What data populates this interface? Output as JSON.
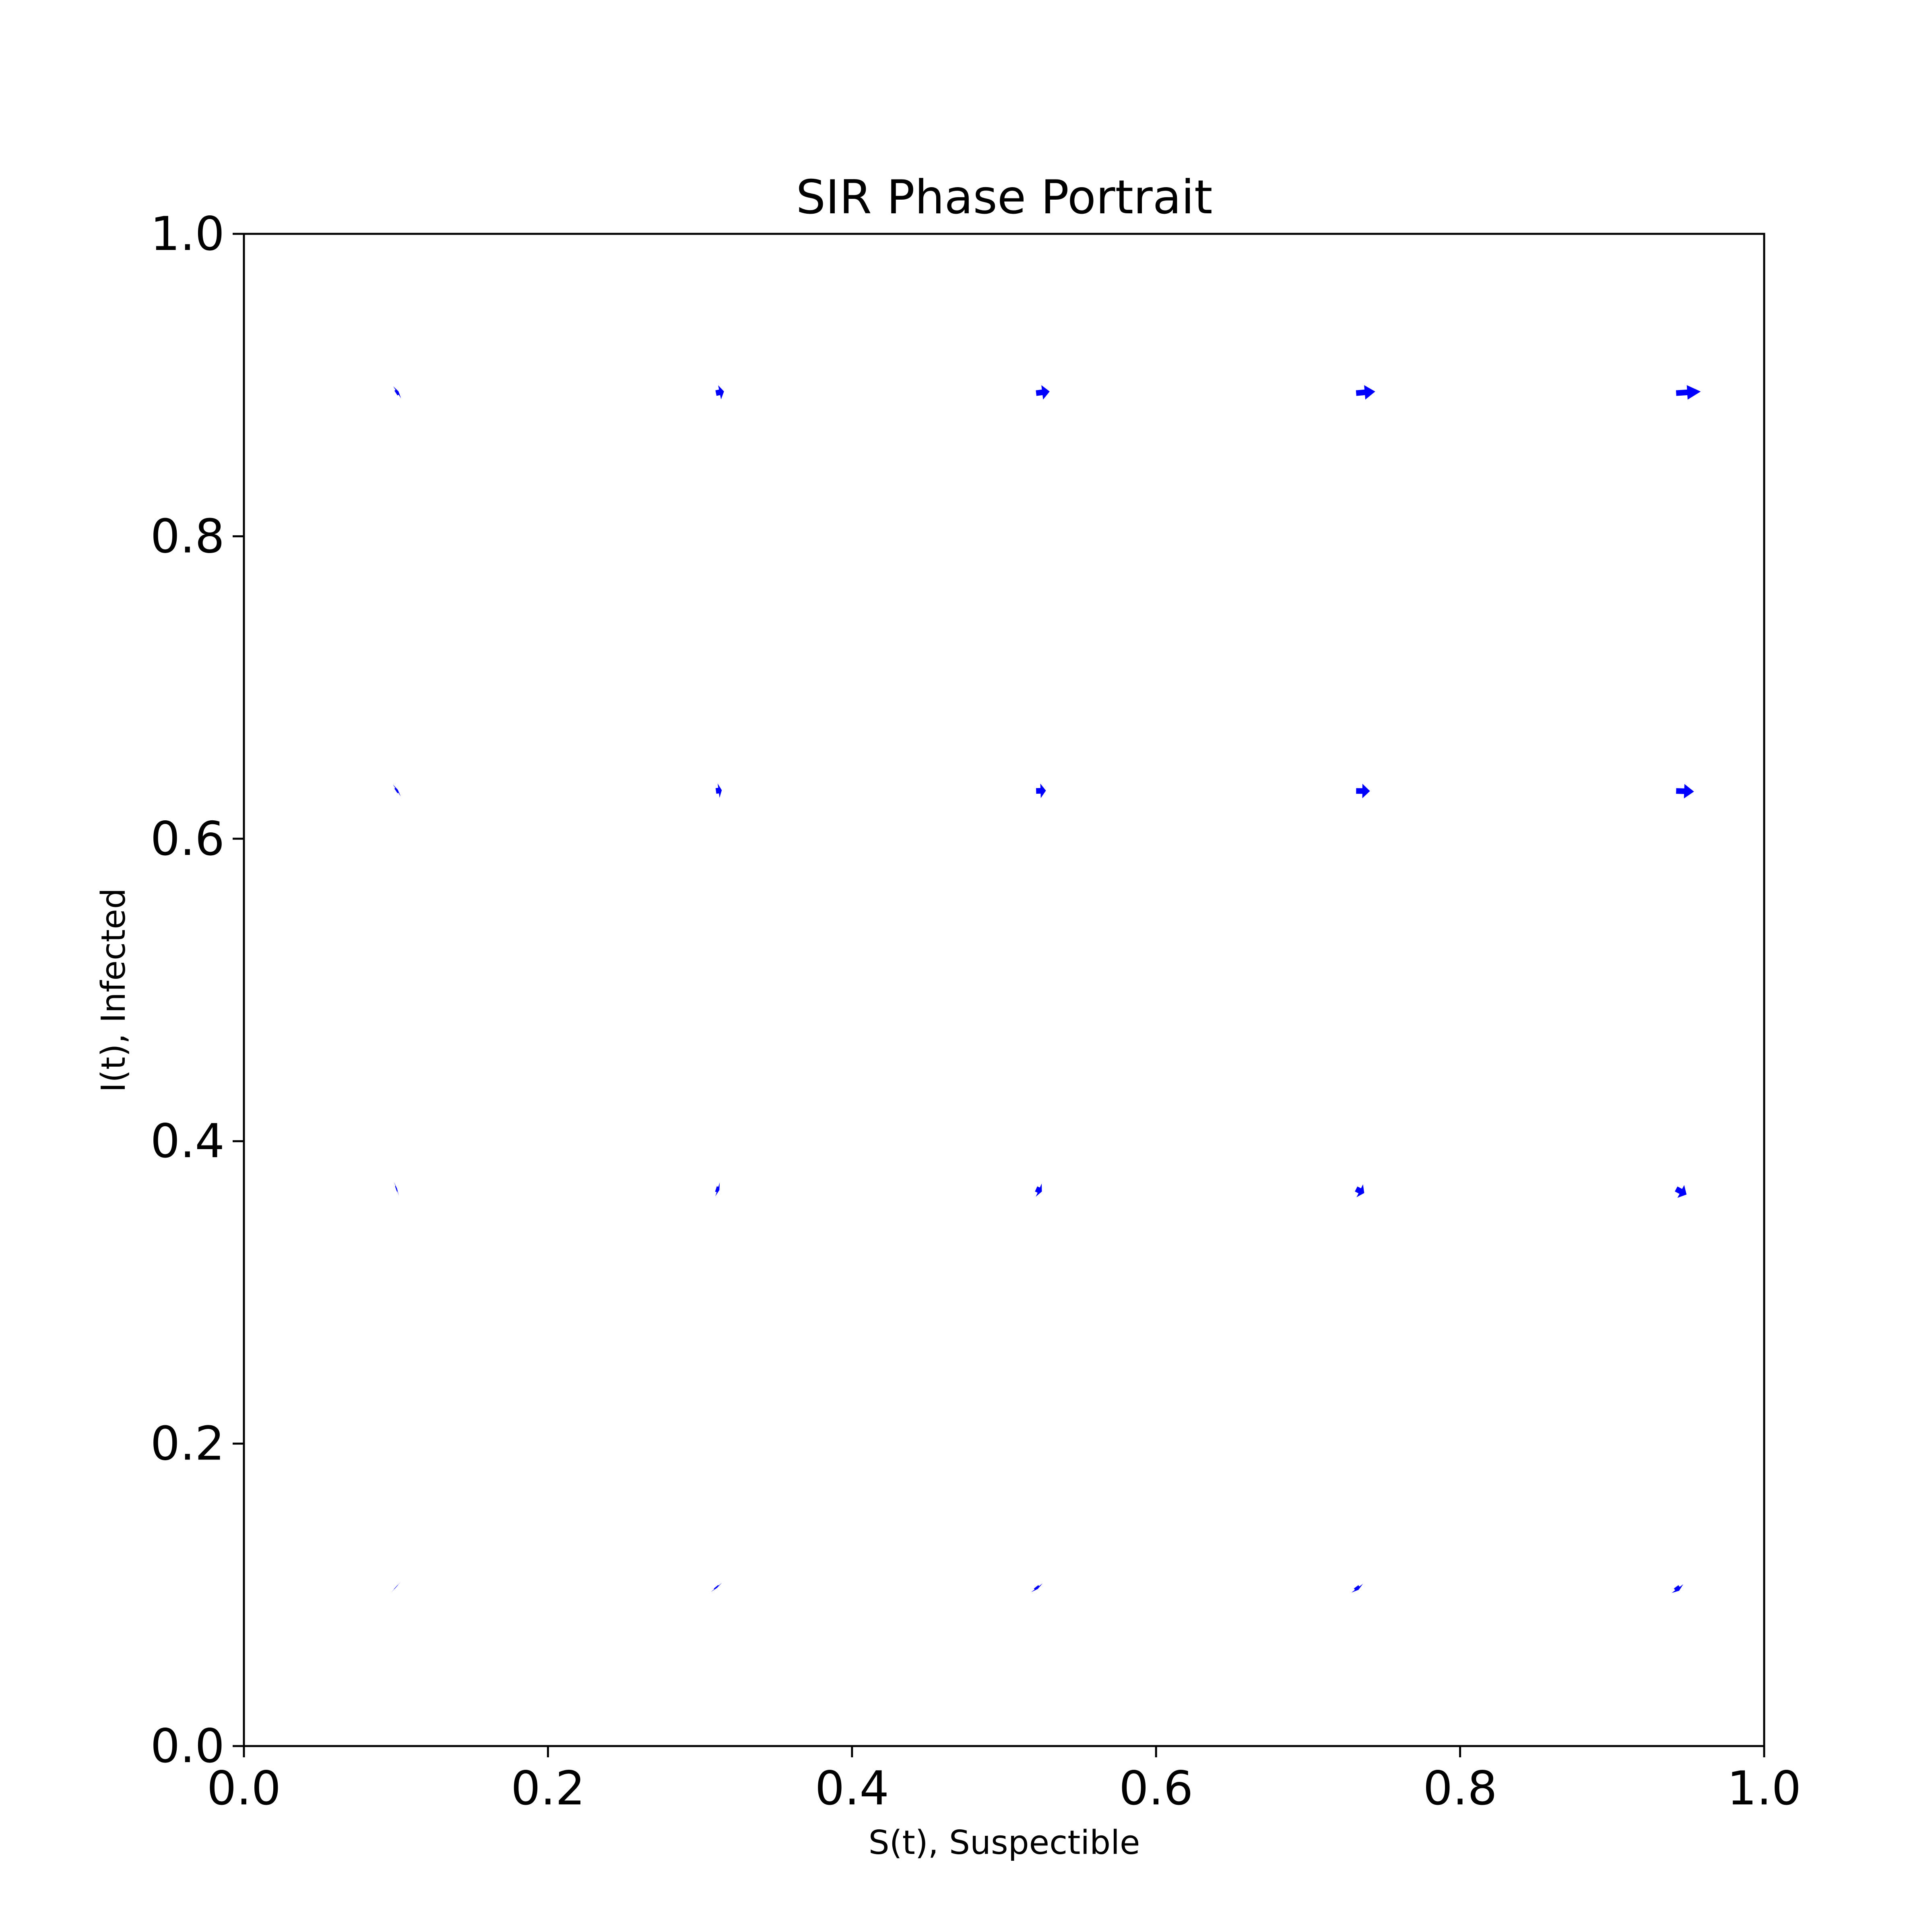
{
  "chart_data": {
    "type": "quiver",
    "title": "SIR Phase Portrait",
    "xlabel": "S(t), Suspectible",
    "ylabel": "I(t), Infected",
    "xlim": [
      0,
      1
    ],
    "ylim": [
      0,
      1
    ],
    "xticks": [
      "0.0",
      "0.2",
      "0.4",
      "0.6",
      "0.8",
      "1.0"
    ],
    "yticks": [
      "0.0",
      "0.2",
      "0.4",
      "0.6",
      "0.8",
      "1.0"
    ],
    "grid": false,
    "arrow_color": "#0000ff",
    "vectors": [
      {
        "x": 0.1,
        "y": 0.1053,
        "u": 0.0009,
        "v": -0.0008
      },
      {
        "x": 0.3105,
        "y": 0.1053,
        "u": 0.0028,
        "v": -0.0034
      },
      {
        "x": 0.5211,
        "y": 0.1053,
        "u": 0.0047,
        "v": -0.0061
      },
      {
        "x": 0.7316,
        "y": 0.1053,
        "u": 0.0066,
        "v": -0.0087
      },
      {
        "x": 0.9421,
        "y": 0.1053,
        "u": 0.0085,
        "v": -0.0113
      },
      {
        "x": 0.1,
        "y": 0.3684,
        "u": 0.0031,
        "v": 0.0011
      },
      {
        "x": 0.3105,
        "y": 0.3684,
        "u": 0.0098,
        "v": -0.0031
      },
      {
        "x": 0.5211,
        "y": 0.3684,
        "u": 0.0165,
        "v": -0.0074
      },
      {
        "x": 0.7316,
        "y": 0.3684,
        "u": 0.0231,
        "v": -0.0116
      },
      {
        "x": 0.9421,
        "y": 0.3684,
        "u": 0.0297,
        "v": -0.0158
      },
      {
        "x": 0.1,
        "y": 0.6316,
        "u": 0.0053,
        "v": 0.0035
      },
      {
        "x": 0.3105,
        "y": 0.6316,
        "u": 0.0167,
        "v": 0.0022
      },
      {
        "x": 0.5211,
        "y": 0.6316,
        "u": 0.0281,
        "v": 0.0009
      },
      {
        "x": 0.7316,
        "y": 0.6316,
        "u": 0.0396,
        "v": -0.0004
      },
      {
        "x": 0.9421,
        "y": 0.6316,
        "u": 0.051,
        "v": -0.0017
      },
      {
        "x": 0.1,
        "y": 0.8947,
        "u": 0.0074,
        "v": 0.0048
      },
      {
        "x": 0.3105,
        "y": 0.8947,
        "u": 0.023,
        "v": 0.0047
      },
      {
        "x": 0.5211,
        "y": 0.8947,
        "u": 0.0387,
        "v": 0.0046
      },
      {
        "x": 0.7316,
        "y": 0.8947,
        "u": 0.0545,
        "v": 0.0045
      },
      {
        "x": 0.9421,
        "y": 0.8947,
        "u": 0.0702,
        "v": 0.0044
      }
    ]
  }
}
